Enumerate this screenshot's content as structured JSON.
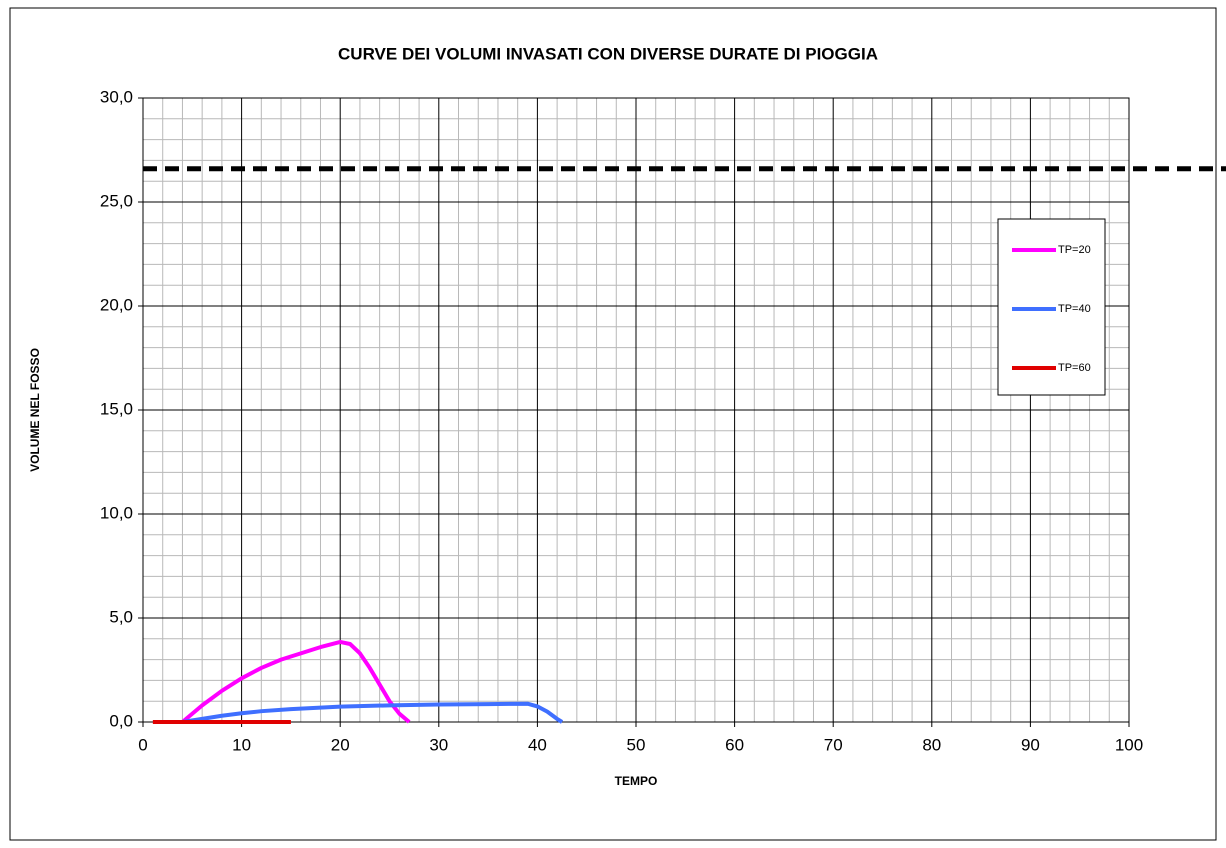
{
  "chart_data": {
    "type": "line",
    "title": "CURVE DEI VOLUMI INVASATI CON DIVERSE DURATE DI PIOGGIA",
    "x_label": "TEMPO",
    "y_label": "VOLUME NEL FOSSO",
    "xlim": [
      0,
      100
    ],
    "xticks": [
      0,
      10,
      20,
      30,
      40,
      50,
      60,
      70,
      80,
      90,
      100
    ],
    "ylim": [
      0,
      30
    ],
    "yticks": [
      {
        "value": 0,
        "label": "0,0"
      },
      {
        "value": 5,
        "label": "5,0"
      },
      {
        "value": 10,
        "label": "10,0"
      },
      {
        "value": 15,
        "label": "15,0"
      },
      {
        "value": 20,
        "label": "20,0"
      },
      {
        "value": 25,
        "label": "25,0"
      },
      {
        "value": 30,
        "label": "30,0"
      }
    ],
    "grid": true,
    "minor_grid": true,
    "legend": "right",
    "reference_line": {
      "value": 26.6,
      "color": "#000000"
    },
    "series": [
      {
        "name": "TP=20",
        "color": "#ff00ff",
        "x": [
          4,
          6,
          8,
          10,
          12,
          14,
          16,
          18,
          20,
          21,
          22,
          23,
          24,
          25,
          26,
          27
        ],
        "values": [
          0,
          0.8,
          1.5,
          2.1,
          2.6,
          3.0,
          3.3,
          3.6,
          3.85,
          3.75,
          3.3,
          2.6,
          1.8,
          1.0,
          0.4,
          0
        ]
      },
      {
        "name": "TP=40",
        "color": "#3f6fff",
        "x": [
          4,
          6,
          8,
          10,
          12,
          15,
          20,
          25,
          30,
          35,
          39,
          40,
          41,
          42,
          42.5
        ],
        "values": [
          0,
          0.15,
          0.3,
          0.42,
          0.52,
          0.62,
          0.74,
          0.8,
          0.84,
          0.86,
          0.88,
          0.75,
          0.5,
          0.15,
          0
        ]
      },
      {
        "name": "TP=60",
        "color": "#e00000",
        "x": [
          1,
          4,
          8,
          12,
          15
        ],
        "values": [
          0,
          0,
          0,
          0,
          0
        ]
      }
    ]
  }
}
